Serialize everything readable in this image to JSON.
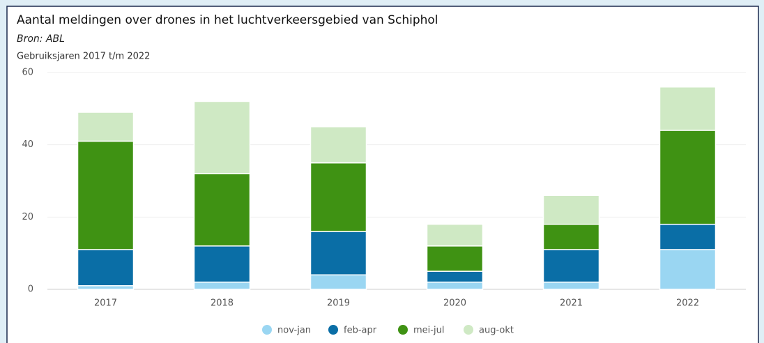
{
  "chart_data": {
    "type": "stacked_bar",
    "title": "Aantal meldingen over drones in het luchtverkeersgebied van Schiphol",
    "subtitle": "Bron: ABL",
    "ylabel": "Gebruiksjaren 2017 t/m 2022",
    "categories": [
      "2017",
      "2018",
      "2019",
      "2020",
      "2021",
      "2022"
    ],
    "series": [
      {
        "name": "nov-jan",
        "color": "#9ad6f2",
        "values": [
          1,
          2,
          4,
          2,
          2,
          11
        ]
      },
      {
        "name": "feb-apr",
        "color": "#0a6ea6",
        "values": [
          10,
          10,
          12,
          3,
          9,
          7
        ]
      },
      {
        "name": "mei-jul",
        "color": "#3f9213",
        "values": [
          30,
          20,
          19,
          7,
          7,
          26
        ]
      },
      {
        "name": "aug-okt",
        "color": "#cfe9c4",
        "values": [
          8,
          20,
          10,
          6,
          8,
          12
        ]
      }
    ],
    "ylim": [
      0,
      60
    ],
    "yticks": [
      0,
      20,
      40,
      60
    ],
    "grid": true,
    "legend": "bottom"
  }
}
